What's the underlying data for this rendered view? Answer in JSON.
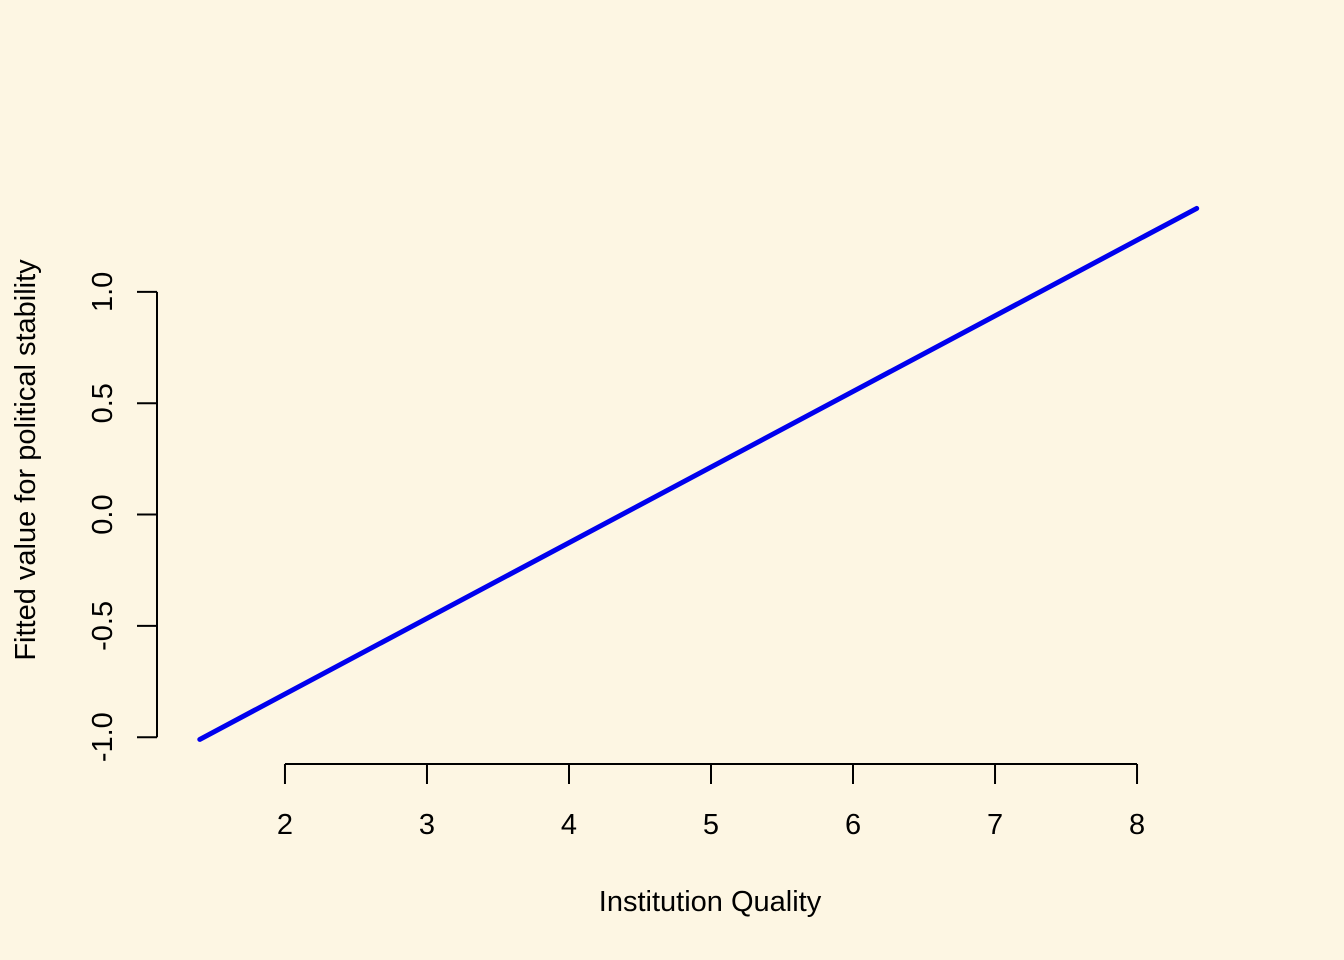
{
  "chart_data": {
    "type": "line",
    "title": "",
    "xlabel": "Institution Quality",
    "ylabel": "Fitted value for political stability",
    "x_ticks": [
      2,
      3,
      4,
      5,
      6,
      7,
      8
    ],
    "x_tick_labels": [
      "2",
      "3",
      "4",
      "5",
      "6",
      "7",
      "8"
    ],
    "y_ticks": [
      -1.0,
      -0.5,
      0.0,
      0.5,
      1.0
    ],
    "y_tick_labels": [
      "-1.0",
      "-0.5",
      "0.0",
      "0.5",
      "1.0"
    ],
    "xlim": [
      1.12,
      8.88
    ],
    "ylim": [
      -1.08,
      1.57
    ],
    "grid": false,
    "series": [
      {
        "color": "#0000ee",
        "x": [
          1.4,
          8.42
        ],
        "y": [
          -1.01,
          1.375
        ]
      }
    ]
  },
  "colors": {
    "background": "#fdf6e3",
    "axis": "#000000"
  }
}
